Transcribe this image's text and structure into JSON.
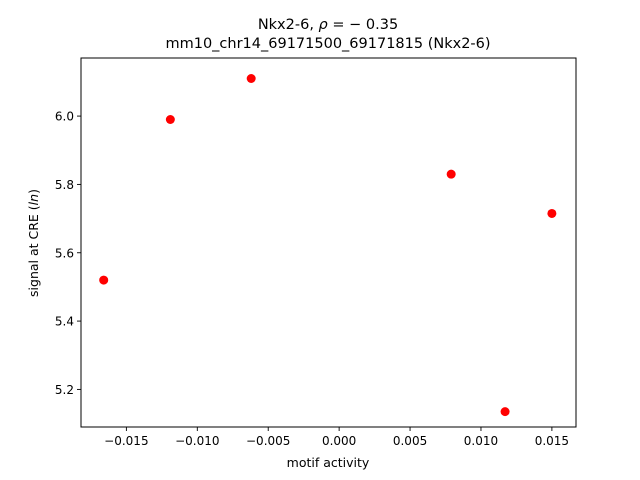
{
  "chart_data": {
    "type": "scatter",
    "title_line1_prefix": "Nkx2-6, ",
    "title_line1_rho": "ρ",
    "title_line1_suffix": " = − 0.35",
    "title_line2": "mm10_chr14_69171500_69171815 (Nkx2-6)",
    "xlabel": "motif activity",
    "ylabel_prefix": "signal at CRE (",
    "ylabel_italic": "ln",
    "ylabel_suffix": ")",
    "xlim": [
      -0.0182,
      0.0167
    ],
    "ylim": [
      5.09,
      6.17
    ],
    "xticks": [
      {
        "value": -0.015,
        "label": "−0.015"
      },
      {
        "value": -0.01,
        "label": "−0.010"
      },
      {
        "value": -0.005,
        "label": "−0.005"
      },
      {
        "value": 0.0,
        "label": "0.000"
      },
      {
        "value": 0.005,
        "label": "0.005"
      },
      {
        "value": 0.01,
        "label": "0.010"
      },
      {
        "value": 0.015,
        "label": "0.015"
      }
    ],
    "yticks": [
      {
        "value": 5.2,
        "label": "5.2"
      },
      {
        "value": 5.4,
        "label": "5.4"
      },
      {
        "value": 5.6,
        "label": "5.6"
      },
      {
        "value": 5.8,
        "label": "5.8"
      },
      {
        "value": 6.0,
        "label": "6.0"
      }
    ],
    "points": [
      {
        "x": -0.0166,
        "y": 5.52
      },
      {
        "x": -0.0119,
        "y": 5.99
      },
      {
        "x": -0.0062,
        "y": 6.11
      },
      {
        "x": 0.0079,
        "y": 5.83
      },
      {
        "x": 0.0117,
        "y": 5.135
      },
      {
        "x": 0.015,
        "y": 5.715
      }
    ],
    "marker_color": "#ff0000",
    "grid": false,
    "legend": "none"
  }
}
